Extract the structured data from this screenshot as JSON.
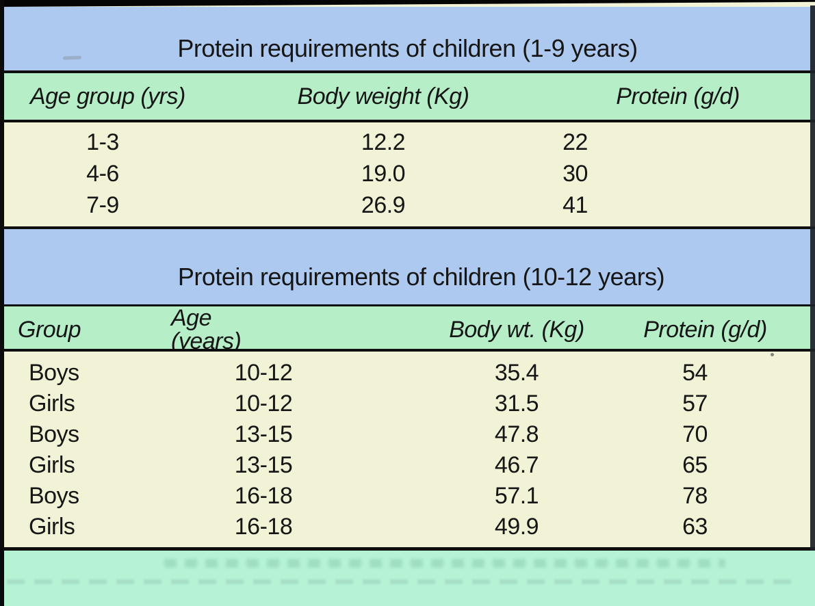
{
  "colors": {
    "band_blue": "#adc9ef",
    "band_green": "#b5eec7",
    "body_cream": "#f2f3d6",
    "band_mint": "#b6f3d5",
    "rule_black": "#0f0f0f",
    "text": "#161616"
  },
  "table1": {
    "title": "Protein requirements of children (1-9 years)",
    "columns": [
      "Age group (yrs)",
      "Body weight (Kg)",
      "Protein (g/d)"
    ],
    "rows": [
      [
        "1-3",
        "12.2",
        "22"
      ],
      [
        "4-6",
        "19.0",
        "30"
      ],
      [
        "7-9",
        "26.9",
        "41"
      ]
    ]
  },
  "table2": {
    "title": "Protein requirements of children (10-12 years)",
    "columns": [
      "Group",
      "Age (years)",
      "Body wt. (Kg)",
      "Protein (g/d)"
    ],
    "rows": [
      [
        "Boys",
        "10-12",
        "35.4",
        "54"
      ],
      [
        "Girls",
        "10-12",
        "31.5",
        "57"
      ],
      [
        "Boys",
        "13-15",
        "47.8",
        "70"
      ],
      [
        "Girls",
        "13-15",
        "46.7",
        "65"
      ],
      [
        "Boys",
        "16-18",
        "57.1",
        "78"
      ],
      [
        "Girls",
        "16-18",
        "49.9",
        "63"
      ]
    ]
  }
}
